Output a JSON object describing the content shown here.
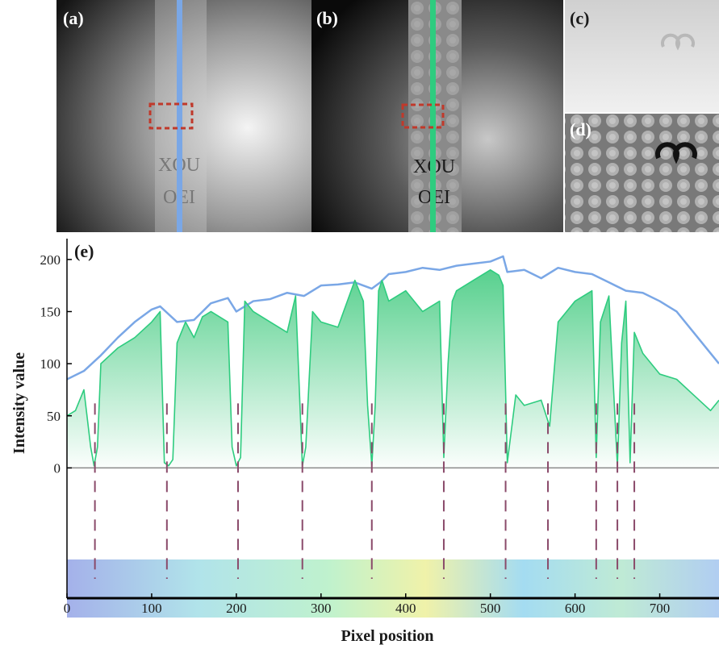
{
  "panels": {
    "a": {
      "label": "(a)"
    },
    "b": {
      "label": "(b)"
    },
    "c": {
      "label": "(c)"
    },
    "d": {
      "label": "(d)"
    },
    "e": {
      "label": "(e)"
    }
  },
  "specimen_text": {
    "line1": "XOU",
    "line2": "OEI"
  },
  "colors": {
    "blue_line": "#7aa7e6",
    "green_line": "#2ecc7f",
    "green_fill_top": "#3ac87a",
    "roi_box": "#c0392b",
    "zero_line": "#8a8a8a",
    "marker_dash": "#8a4a6a",
    "letter_outline": "#f2b48a"
  },
  "chart_data": {
    "type": "line",
    "xlabel": "Pixel position",
    "ylabel": "Intensity value",
    "xlim": [
      0,
      770
    ],
    "ylim": [
      -125,
      220
    ],
    "x_ticks": [
      0,
      100,
      200,
      300,
      400,
      500,
      600,
      700
    ],
    "y_ticks": [
      0,
      50,
      100,
      150,
      200
    ],
    "grid": false,
    "series": [
      {
        "color": "#7aa7e6",
        "x": [
          0,
          20,
          40,
          60,
          80,
          100,
          110,
          130,
          150,
          170,
          190,
          200,
          220,
          240,
          260,
          280,
          300,
          320,
          340,
          360,
          370,
          380,
          400,
          420,
          440,
          460,
          480,
          500,
          515,
          520,
          540,
          560,
          580,
          600,
          620,
          640,
          660,
          680,
          700,
          720,
          740,
          760,
          770
        ],
        "y": [
          85,
          93,
          108,
          125,
          140,
          152,
          155,
          140,
          142,
          158,
          163,
          150,
          160,
          162,
          168,
          165,
          175,
          176,
          178,
          172,
          178,
          186,
          188,
          192,
          190,
          194,
          196,
          198,
          203,
          188,
          190,
          182,
          192,
          188,
          186,
          178,
          170,
          168,
          160,
          150,
          130,
          110,
          100
        ]
      },
      {
        "color": "#2ecc7f",
        "x": [
          0,
          10,
          20,
          28,
          32,
          36,
          40,
          60,
          80,
          100,
          110,
          115,
          120,
          125,
          130,
          140,
          150,
          160,
          170,
          180,
          190,
          195,
          200,
          205,
          210,
          220,
          240,
          260,
          270,
          278,
          282,
          290,
          300,
          320,
          340,
          350,
          355,
          360,
          364,
          368,
          372,
          380,
          400,
          420,
          440,
          445,
          450,
          455,
          460,
          480,
          500,
          510,
          515,
          520,
          530,
          540,
          560,
          570,
          580,
          600,
          620,
          625,
          630,
          640,
          650,
          655,
          660,
          665,
          670,
          680,
          700,
          720,
          740,
          760,
          770
        ],
        "y": [
          50,
          55,
          75,
          20,
          2,
          20,
          100,
          115,
          125,
          140,
          150,
          5,
          2,
          8,
          120,
          140,
          125,
          145,
          150,
          145,
          140,
          20,
          2,
          10,
          160,
          150,
          140,
          130,
          165,
          2,
          20,
          150,
          140,
          135,
          180,
          160,
          60,
          2,
          60,
          170,
          180,
          160,
          170,
          150,
          160,
          10,
          100,
          160,
          170,
          180,
          190,
          185,
          175,
          5,
          70,
          60,
          65,
          40,
          140,
          160,
          170,
          10,
          140,
          165,
          2,
          120,
          160,
          5,
          130,
          110,
          90,
          85,
          70,
          55,
          65
        ]
      }
    ],
    "markers_x": [
      33,
      118,
      202,
      278,
      360,
      445,
      518,
      568,
      625,
      650,
      670
    ]
  }
}
